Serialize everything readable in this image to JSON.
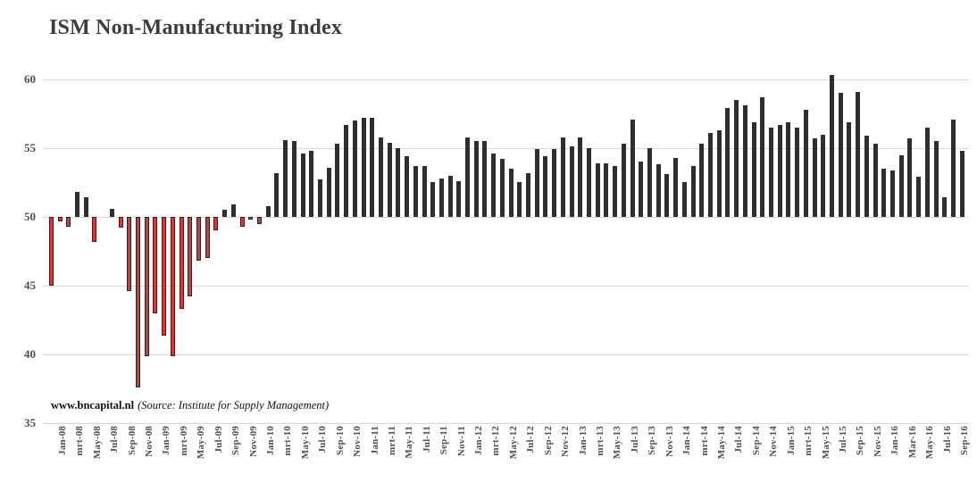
{
  "title": "ISM Non-Manufacturing Index",
  "footer": {
    "site": "www.bncapital.nl",
    "source": "(Source: Institute for Supply Management)"
  },
  "chart_data": {
    "type": "bar",
    "title": "ISM Non-Manufacturing Index",
    "baseline": 50,
    "ylim": [
      35,
      61
    ],
    "y_ticks": [
      60,
      55,
      50,
      45,
      40,
      35
    ],
    "grid": true,
    "legend": "none",
    "bar_color_above": "#2e2e2e",
    "bar_color_below_fill": "#e03434",
    "bar_color_below_border": "#262626",
    "gridline_color": "#d9d9d9",
    "n_bars": 106,
    "x_tick_every": 2,
    "x_tick_labels": [
      "Jan-08",
      "mrt-08",
      "May-08",
      "Jul-08",
      "Sep-08",
      "Nov-08",
      "Jan-09",
      "mrt-09",
      "May-09",
      "Jul-09",
      "Sep-09",
      "Nov-09",
      "Jan-10",
      "mrt-10",
      "May-10",
      "Jul-10",
      "Sep-10",
      "Nov-10",
      "Jan-11",
      "mrt-11",
      "May-11",
      "Jul-11",
      "Sep-11",
      "Nov-11",
      "Jan-12",
      "mrt-12",
      "May-12",
      "Jul-12",
      "Sep-12",
      "Nov-12",
      "Jan-13",
      "mrt-13",
      "May-13",
      "Jul-13",
      "Sep-13",
      "Nov-13",
      "Jan-14",
      "mrt-14",
      "May-14",
      "Jul-14",
      "Sep-14",
      "Nov-14",
      "Jan-15",
      "mrt-15",
      "May-15",
      "Jul-15",
      "Sep-15",
      "Nov-15",
      "Jan-16",
      "Mar-16",
      "May-16",
      "Jul-16",
      "Sep-16"
    ],
    "values": [
      45.0,
      49.7,
      49.3,
      51.8,
      51.4,
      48.2,
      50.0,
      50.6,
      49.2,
      44.6,
      37.6,
      39.9,
      43.0,
      41.4,
      39.9,
      43.3,
      44.2,
      46.8,
      47.0,
      49.0,
      50.5,
      50.9,
      49.3,
      49.8,
      49.5,
      50.8,
      53.2,
      55.6,
      55.5,
      54.6,
      54.8,
      52.7,
      53.6,
      55.3,
      56.7,
      57.0,
      57.2,
      57.2,
      55.8,
      55.4,
      55.0,
      54.4,
      53.7,
      53.7,
      52.5,
      52.8,
      53.0,
      52.6,
      55.8,
      55.5,
      55.5,
      54.6,
      54.2,
      53.5,
      52.5,
      53.2,
      54.9,
      54.4,
      54.9,
      55.8,
      55.1,
      55.8,
      55.0,
      53.9,
      53.9,
      53.7,
      55.3,
      57.1,
      54.0,
      55.0,
      53.8,
      53.1,
      54.3,
      52.5,
      53.7,
      55.3,
      56.1,
      56.3,
      57.9,
      58.5,
      58.1,
      56.9,
      58.7,
      56.5,
      56.7,
      56.9,
      56.5,
      57.8,
      55.7,
      56.0,
      60.3,
      59.0,
      56.9,
      59.1,
      55.9,
      55.3,
      53.5,
      53.4,
      54.5,
      55.7,
      52.9,
      56.5,
      55.5,
      51.4,
      57.1,
      54.8
    ]
  }
}
